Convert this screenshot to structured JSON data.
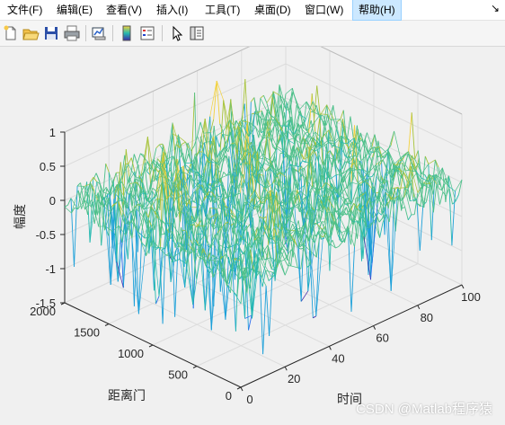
{
  "menubar": {
    "items": [
      {
        "label": "文件(F)"
      },
      {
        "label": "编辑(E)"
      },
      {
        "label": "查看(V)"
      },
      {
        "label": "插入(I)"
      },
      {
        "label": "工具(T)"
      },
      {
        "label": "桌面(D)"
      },
      {
        "label": "窗口(W)"
      },
      {
        "label": "帮助(H)"
      }
    ],
    "corner_icon": "dock-arrow-icon"
  },
  "toolbar": {
    "icons": [
      "new-figure-icon",
      "open-file-icon",
      "save-icon",
      "print-icon",
      "link-plot-icon",
      "colorbar-icon",
      "legend-icon",
      "pointer-icon",
      "property-editor-icon"
    ]
  },
  "chart_data": {
    "type": "surface",
    "xlabel": "时间",
    "ylabel": "距离门",
    "zlabel": "幅度",
    "xlim": [
      0,
      100
    ],
    "ylim": [
      0,
      2000
    ],
    "zlim": [
      -1.5,
      1
    ],
    "xticks": [
      "0",
      "20",
      "40",
      "60",
      "80",
      "100"
    ],
    "yticks": [
      "0",
      "500",
      "1000",
      "1500",
      "2000"
    ],
    "zticks": [
      "-1.5",
      "-1",
      "-0.5",
      "0",
      "0.5",
      "1"
    ],
    "grid": true,
    "colormap": [
      "#3e26a8",
      "#2f6ff0",
      "#1ca0d9",
      "#25b9b0",
      "#4dc08a",
      "#a7c33a",
      "#f2d13c"
    ]
  },
  "watermark": "CSDN @Matlab程序猿"
}
